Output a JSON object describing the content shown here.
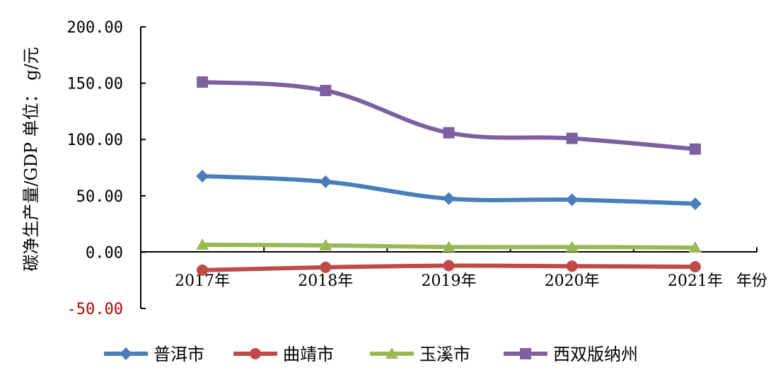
{
  "chart_data": {
    "type": "line",
    "ylabel": "碳净生产量/GDP 单位： g/元",
    "xlabel": "年份",
    "categories": [
      "2017年",
      "2018年",
      "2019年",
      "2020年",
      "2021年"
    ],
    "ylim": [
      -50,
      200
    ],
    "yticks": [
      "200.00",
      "150.00",
      "100.00",
      "50.00",
      "0.00",
      "-50.00"
    ],
    "yticks_values": [
      200,
      150,
      100,
      50,
      0,
      -50
    ],
    "negative_tick_color": "#c00000",
    "grid": false,
    "smooth": true,
    "legend_position": "bottom",
    "series": [
      {
        "name": "普洱市",
        "color": "#4a7ebb",
        "marker": "diamond",
        "values": [
          67.5,
          62.5,
          47.5,
          46.5,
          43.0
        ]
      },
      {
        "name": "曲靖市",
        "color": "#be4b48",
        "marker": "circle",
        "values": [
          -16.0,
          -13.5,
          -12.0,
          -12.5,
          -13.0
        ]
      },
      {
        "name": "玉溪市",
        "color": "#98b954",
        "marker": "triangle",
        "values": [
          6.5,
          6.0,
          4.5,
          4.5,
          4.0
        ]
      },
      {
        "name": "西双版纳州",
        "color": "#7d60a0",
        "marker": "square",
        "values": [
          151.0,
          143.5,
          106.0,
          101.0,
          91.5
        ]
      }
    ]
  }
}
